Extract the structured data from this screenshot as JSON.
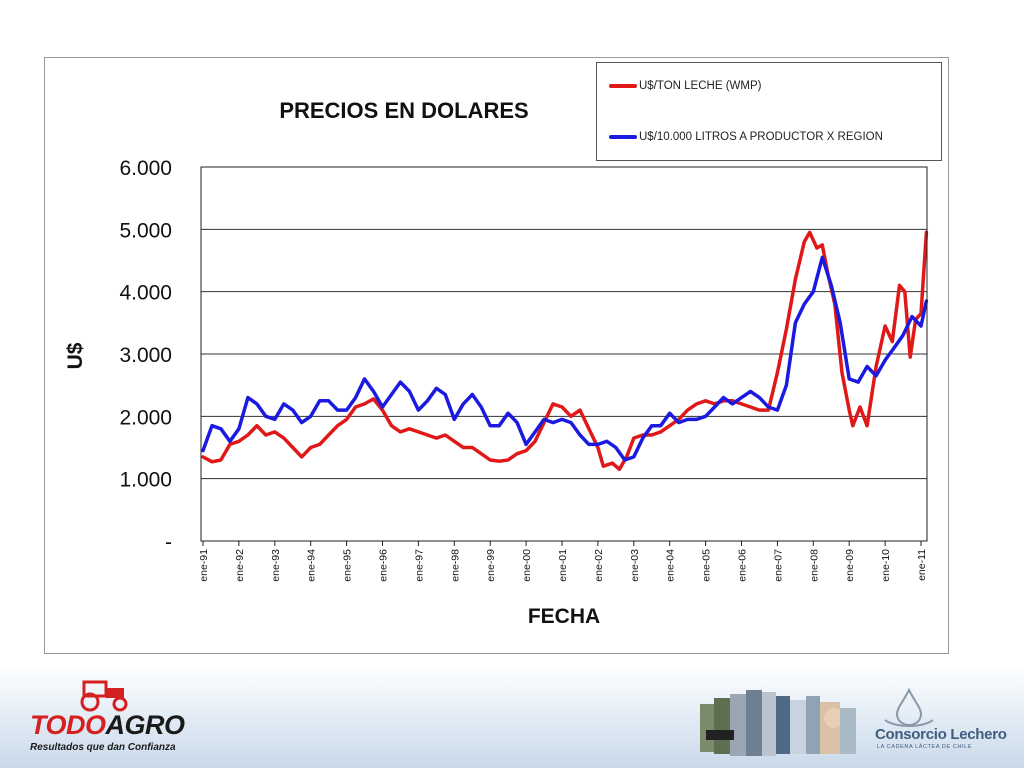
{
  "chart_data": {
    "type": "line",
    "title": "PRECIOS EN DOLARES",
    "xlabel": "FECHA",
    "ylabel": "U$",
    "ylim": [
      0,
      6000
    ],
    "y_ticks": [
      0,
      1000,
      2000,
      3000,
      4000,
      5000,
      6000
    ],
    "y_tick_labels": [
      "-",
      "1.000",
      "2.000",
      "3.000",
      "4.000",
      "5.000",
      "6.000"
    ],
    "xlim": [
      1991.0,
      2011.25
    ],
    "x_ticks": [
      1991,
      1992,
      1993,
      1994,
      1995,
      1996,
      1997,
      1998,
      1999,
      2000,
      2001,
      2002,
      2003,
      2004,
      2005,
      2006,
      2007,
      2008,
      2009,
      2010,
      2011
    ],
    "x_tick_labels": [
      "ene-91",
      "ene-92",
      "ene-93",
      "ene-94",
      "ene-95",
      "ene-96",
      "ene-97",
      "ene-98",
      "ene-99",
      "ene-00",
      "ene-01",
      "ene-02",
      "ene-03",
      "ene-04",
      "ene-05",
      "ene-06",
      "ene-07",
      "ene-08",
      "ene-09",
      "ene-10",
      "ene-11"
    ],
    "grid": "horizontal",
    "legend": "top-right",
    "series": [
      {
        "name": "U$/TON LECHE (WMP)",
        "color": "#e01818",
        "points": [
          [
            1991.0,
            1350
          ],
          [
            1991.25,
            1270
          ],
          [
            1991.5,
            1300
          ],
          [
            1991.75,
            1550
          ],
          [
            1992.0,
            1600
          ],
          [
            1992.25,
            1700
          ],
          [
            1992.5,
            1850
          ],
          [
            1992.75,
            1700
          ],
          [
            1993.0,
            1750
          ],
          [
            1993.25,
            1650
          ],
          [
            1993.5,
            1500
          ],
          [
            1993.75,
            1350
          ],
          [
            1994.0,
            1500
          ],
          [
            1994.25,
            1550
          ],
          [
            1994.5,
            1700
          ],
          [
            1994.75,
            1850
          ],
          [
            1995.0,
            1950
          ],
          [
            1995.25,
            2150
          ],
          [
            1995.5,
            2200
          ],
          [
            1995.75,
            2280
          ],
          [
            1996.0,
            2100
          ],
          [
            1996.25,
            1850
          ],
          [
            1996.5,
            1750
          ],
          [
            1996.75,
            1800
          ],
          [
            1997.0,
            1750
          ],
          [
            1997.25,
            1700
          ],
          [
            1997.5,
            1650
          ],
          [
            1997.75,
            1700
          ],
          [
            1998.0,
            1600
          ],
          [
            1998.25,
            1500
          ],
          [
            1998.5,
            1500
          ],
          [
            1998.75,
            1400
          ],
          [
            1999.0,
            1300
          ],
          [
            1999.25,
            1280
          ],
          [
            1999.5,
            1300
          ],
          [
            1999.75,
            1400
          ],
          [
            2000.0,
            1450
          ],
          [
            2000.25,
            1600
          ],
          [
            2000.5,
            1900
          ],
          [
            2000.75,
            2200
          ],
          [
            2001.0,
            2150
          ],
          [
            2001.25,
            2000
          ],
          [
            2001.5,
            2100
          ],
          [
            2001.75,
            1800
          ],
          [
            2002.0,
            1500
          ],
          [
            2002.15,
            1200
          ],
          [
            2002.4,
            1250
          ],
          [
            2002.6,
            1150
          ],
          [
            2002.8,
            1350
          ],
          [
            2003.0,
            1650
          ],
          [
            2003.25,
            1700
          ],
          [
            2003.5,
            1700
          ],
          [
            2003.75,
            1750
          ],
          [
            2004.0,
            1850
          ],
          [
            2004.25,
            1950
          ],
          [
            2004.5,
            2100
          ],
          [
            2004.75,
            2200
          ],
          [
            2005.0,
            2250
          ],
          [
            2005.25,
            2200
          ],
          [
            2005.5,
            2250
          ],
          [
            2005.75,
            2250
          ],
          [
            2006.0,
            2200
          ],
          [
            2006.25,
            2150
          ],
          [
            2006.5,
            2100
          ],
          [
            2006.75,
            2100
          ],
          [
            2007.0,
            2700
          ],
          [
            2007.25,
            3400
          ],
          [
            2007.5,
            4200
          ],
          [
            2007.75,
            4800
          ],
          [
            2007.9,
            4950
          ],
          [
            2008.1,
            4700
          ],
          [
            2008.25,
            4750
          ],
          [
            2008.4,
            4300
          ],
          [
            2008.6,
            3800
          ],
          [
            2008.8,
            2700
          ],
          [
            2009.0,
            2100
          ],
          [
            2009.1,
            1850
          ],
          [
            2009.3,
            2150
          ],
          [
            2009.5,
            1850
          ],
          [
            2009.75,
            2800
          ],
          [
            2010.0,
            3450
          ],
          [
            2010.2,
            3200
          ],
          [
            2010.4,
            4100
          ],
          [
            2010.55,
            4000
          ],
          [
            2010.7,
            2950
          ],
          [
            2010.85,
            3550
          ],
          [
            2011.0,
            3650
          ],
          [
            2011.15,
            4950
          ]
        ]
      },
      {
        "name": "U$/10.000 LITROS A PRODUCTOR X REGION",
        "color": "#1a1ae0",
        "points": [
          [
            1991.0,
            1450
          ],
          [
            1991.25,
            1850
          ],
          [
            1991.5,
            1800
          ],
          [
            1991.75,
            1600
          ],
          [
            1992.0,
            1800
          ],
          [
            1992.25,
            2300
          ],
          [
            1992.5,
            2200
          ],
          [
            1992.75,
            2000
          ],
          [
            1993.0,
            1950
          ],
          [
            1993.25,
            2200
          ],
          [
            1993.5,
            2100
          ],
          [
            1993.75,
            1900
          ],
          [
            1994.0,
            2000
          ],
          [
            1994.25,
            2250
          ],
          [
            1994.5,
            2250
          ],
          [
            1994.75,
            2100
          ],
          [
            1995.0,
            2100
          ],
          [
            1995.25,
            2300
          ],
          [
            1995.5,
            2600
          ],
          [
            1995.75,
            2400
          ],
          [
            1996.0,
            2150
          ],
          [
            1996.25,
            2350
          ],
          [
            1996.5,
            2550
          ],
          [
            1996.75,
            2400
          ],
          [
            1997.0,
            2100
          ],
          [
            1997.25,
            2250
          ],
          [
            1997.5,
            2450
          ],
          [
            1997.75,
            2350
          ],
          [
            1998.0,
            1950
          ],
          [
            1998.25,
            2200
          ],
          [
            1998.5,
            2350
          ],
          [
            1998.75,
            2150
          ],
          [
            1999.0,
            1850
          ],
          [
            1999.25,
            1850
          ],
          [
            1999.5,
            2050
          ],
          [
            1999.75,
            1900
          ],
          [
            2000.0,
            1550
          ],
          [
            2000.25,
            1750
          ],
          [
            2000.5,
            1950
          ],
          [
            2000.75,
            1900
          ],
          [
            2001.0,
            1950
          ],
          [
            2001.25,
            1900
          ],
          [
            2001.5,
            1700
          ],
          [
            2001.75,
            1550
          ],
          [
            2002.0,
            1550
          ],
          [
            2002.25,
            1600
          ],
          [
            2002.5,
            1500
          ],
          [
            2002.75,
            1300
          ],
          [
            2003.0,
            1350
          ],
          [
            2003.25,
            1650
          ],
          [
            2003.5,
            1850
          ],
          [
            2003.75,
            1850
          ],
          [
            2004.0,
            2050
          ],
          [
            2004.25,
            1900
          ],
          [
            2004.5,
            1950
          ],
          [
            2004.75,
            1950
          ],
          [
            2005.0,
            2000
          ],
          [
            2005.25,
            2150
          ],
          [
            2005.5,
            2300
          ],
          [
            2005.75,
            2200
          ],
          [
            2006.0,
            2300
          ],
          [
            2006.25,
            2400
          ],
          [
            2006.5,
            2300
          ],
          [
            2006.75,
            2150
          ],
          [
            2007.0,
            2100
          ],
          [
            2007.25,
            2500
          ],
          [
            2007.5,
            3500
          ],
          [
            2007.75,
            3800
          ],
          [
            2008.0,
            4000
          ],
          [
            2008.25,
            4550
          ],
          [
            2008.5,
            4100
          ],
          [
            2008.75,
            3500
          ],
          [
            2009.0,
            2600
          ],
          [
            2009.25,
            2550
          ],
          [
            2009.5,
            2800
          ],
          [
            2009.75,
            2650
          ],
          [
            2010.0,
            2900
          ],
          [
            2010.25,
            3100
          ],
          [
            2010.5,
            3300
          ],
          [
            2010.75,
            3600
          ],
          [
            2011.0,
            3450
          ],
          [
            2011.15,
            3850
          ]
        ]
      }
    ]
  },
  "footer": {
    "todoagro_name_a": "TODO",
    "todoagro_name_b": "AGRO",
    "todoagro_tagline": "Resultados que dan Confianza",
    "consorcio_name": "Consorcio Lechero",
    "consorcio_tagline": "LA CADENA LÁCTEA DE CHILE",
    "brand_red": "#d42020",
    "brand_blue": "#3e5d80"
  }
}
